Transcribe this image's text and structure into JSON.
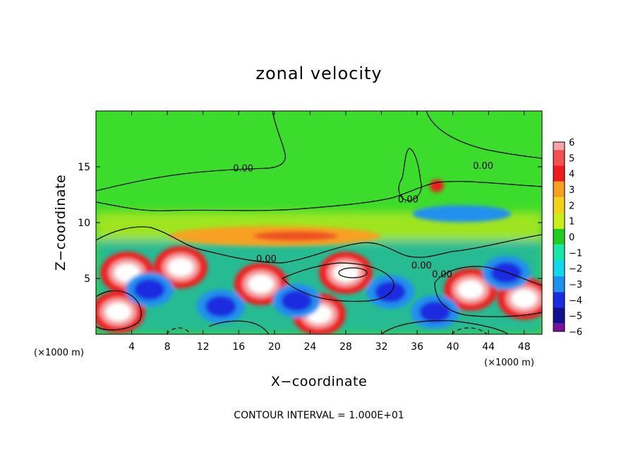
{
  "chart_data": {
    "type": "heatmap",
    "title": "zonal velocity",
    "xlabel": "X−coordinate",
    "ylabel": "Z−coordinate",
    "x_unit": "(×1000 m)",
    "z_unit": "(×1000 m)",
    "xlim": [
      0,
      50
    ],
    "ylim": [
      0,
      20
    ],
    "xticks": [
      4,
      8,
      12,
      16,
      20,
      24,
      28,
      32,
      36,
      40,
      44,
      48
    ],
    "yticks": [
      5,
      10,
      15
    ],
    "colorbar": {
      "levels": [
        6,
        5,
        4,
        3,
        2,
        1,
        0,
        -1,
        -2,
        -3,
        -4,
        -5,
        -6
      ],
      "labels": [
        "6",
        "5",
        "4",
        "3",
        "2",
        "1",
        "0",
        "−1",
        "−2",
        "−3",
        "−4",
        "−5",
        "−6"
      ],
      "colors": [
        "#f4a6a6",
        "#f25050",
        "#ee1c1c",
        "#f8a020",
        "#f3d21a",
        "#c9ee1a",
        "#22cc22",
        "#19e6a8",
        "#12d8ee",
        "#2090ee",
        "#1a2ce0",
        "#121090",
        "#7a109a"
      ]
    },
    "contour_labels": [
      {
        "text": "0.00",
        "x": 16.5,
        "z": 14.6
      },
      {
        "text": "0.00",
        "x": 43.4,
        "z": 14.8
      },
      {
        "text": "0.00",
        "x": 35.0,
        "z": 11.8
      },
      {
        "text": "0.00",
        "x": 19.1,
        "z": 6.5
      },
      {
        "text": "0.00",
        "x": 36.5,
        "z": 5.9
      },
      {
        "text": "0.00",
        "x": 38.8,
        "z": 5.1
      }
    ],
    "contour_interval_text": "CONTOUR INTERVAL = 1.000E+01",
    "features": [
      {
        "kind": "positive_core",
        "x": 3.5,
        "z": 5.5,
        "value": 6
      },
      {
        "kind": "positive_core",
        "x": 9.5,
        "z": 6.0,
        "value": 6
      },
      {
        "kind": "positive_core",
        "x": 18.5,
        "z": 4.5,
        "value": 6
      },
      {
        "kind": "positive_core",
        "x": 28.0,
        "z": 5.5,
        "value": 6
      },
      {
        "kind": "positive_core",
        "x": 42.0,
        "z": 4.0,
        "value": 6
      },
      {
        "kind": "positive_core",
        "x": 2.5,
        "z": 2.0,
        "value": 6
      },
      {
        "kind": "positive_core",
        "x": 25.0,
        "z": 1.8,
        "value": 6
      },
      {
        "kind": "positive_core",
        "x": 48.0,
        "z": 3.2,
        "value": 6
      },
      {
        "kind": "negative_core",
        "x": 6.0,
        "z": 4.0,
        "value": -5
      },
      {
        "kind": "negative_core",
        "x": 14.0,
        "z": 2.5,
        "value": -5
      },
      {
        "kind": "negative_core",
        "x": 22.5,
        "z": 3.0,
        "value": -5
      },
      {
        "kind": "negative_core",
        "x": 33.0,
        "z": 3.8,
        "value": -5
      },
      {
        "kind": "negative_core",
        "x": 38.0,
        "z": 2.0,
        "value": -5
      },
      {
        "kind": "negative_core",
        "x": 46.0,
        "z": 5.5,
        "value": -5
      },
      {
        "kind": "negative_band",
        "x": 41.0,
        "z": 10.8,
        "value": -3
      },
      {
        "kind": "positive_band",
        "x": 20.0,
        "z": 8.8,
        "value": 3
      },
      {
        "kind": "positive_spot",
        "x": 38.2,
        "z": 13.3,
        "value": 4
      }
    ]
  }
}
